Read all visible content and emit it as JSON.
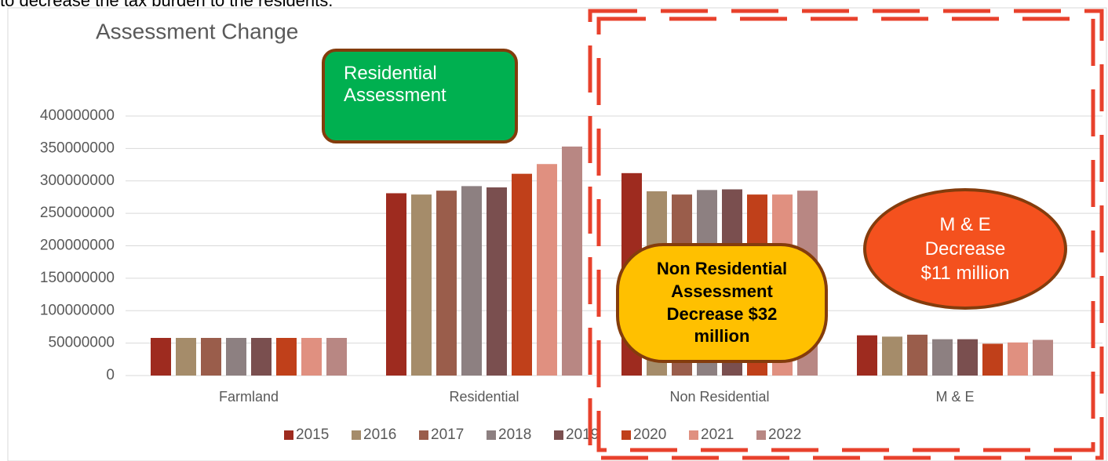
{
  "chart_data": {
    "type": "bar",
    "caption": "to decrease the tax burden to the residents.",
    "title": "Assessment Change",
    "categories": [
      "Farmland",
      "Residential",
      "Non Residential",
      "M & E"
    ],
    "series": [
      {
        "name": "2015",
        "color": "#9e2b1f",
        "values": [
          58000000,
          281000000,
          312000000,
          62000000
        ]
      },
      {
        "name": "2016",
        "color": "#a58c6a",
        "values": [
          58000000,
          279000000,
          284000000,
          60000000
        ]
      },
      {
        "name": "2017",
        "color": "#9a5d4b",
        "values": [
          58000000,
          285000000,
          279000000,
          63000000
        ]
      },
      {
        "name": "2018",
        "color": "#8d8081",
        "values": [
          58000000,
          292000000,
          286000000,
          56000000
        ]
      },
      {
        "name": "2019",
        "color": "#7a4f4f",
        "values": [
          58000000,
          290000000,
          287000000,
          56000000
        ]
      },
      {
        "name": "2020",
        "color": "#c0401a",
        "values": [
          58000000,
          311000000,
          279000000,
          49000000
        ]
      },
      {
        "name": "2021",
        "color": "#e09080",
        "values": [
          58000000,
          326000000,
          279000000,
          51000000
        ]
      },
      {
        "name": "2022",
        "color": "#b88783",
        "values": [
          58000000,
          353000000,
          285000000,
          55000000
        ]
      }
    ],
    "ylim": [
      0,
      400000000
    ],
    "yticks": [
      0,
      50000000,
      100000000,
      150000000,
      200000000,
      250000000,
      300000000,
      350000000,
      400000000
    ],
    "grid": true,
    "legend": "bottom",
    "annotations": [
      "Residential Assessment",
      "Non Residential Assessment Decrease $32 million",
      "M & E Decrease $11 million"
    ]
  }
}
